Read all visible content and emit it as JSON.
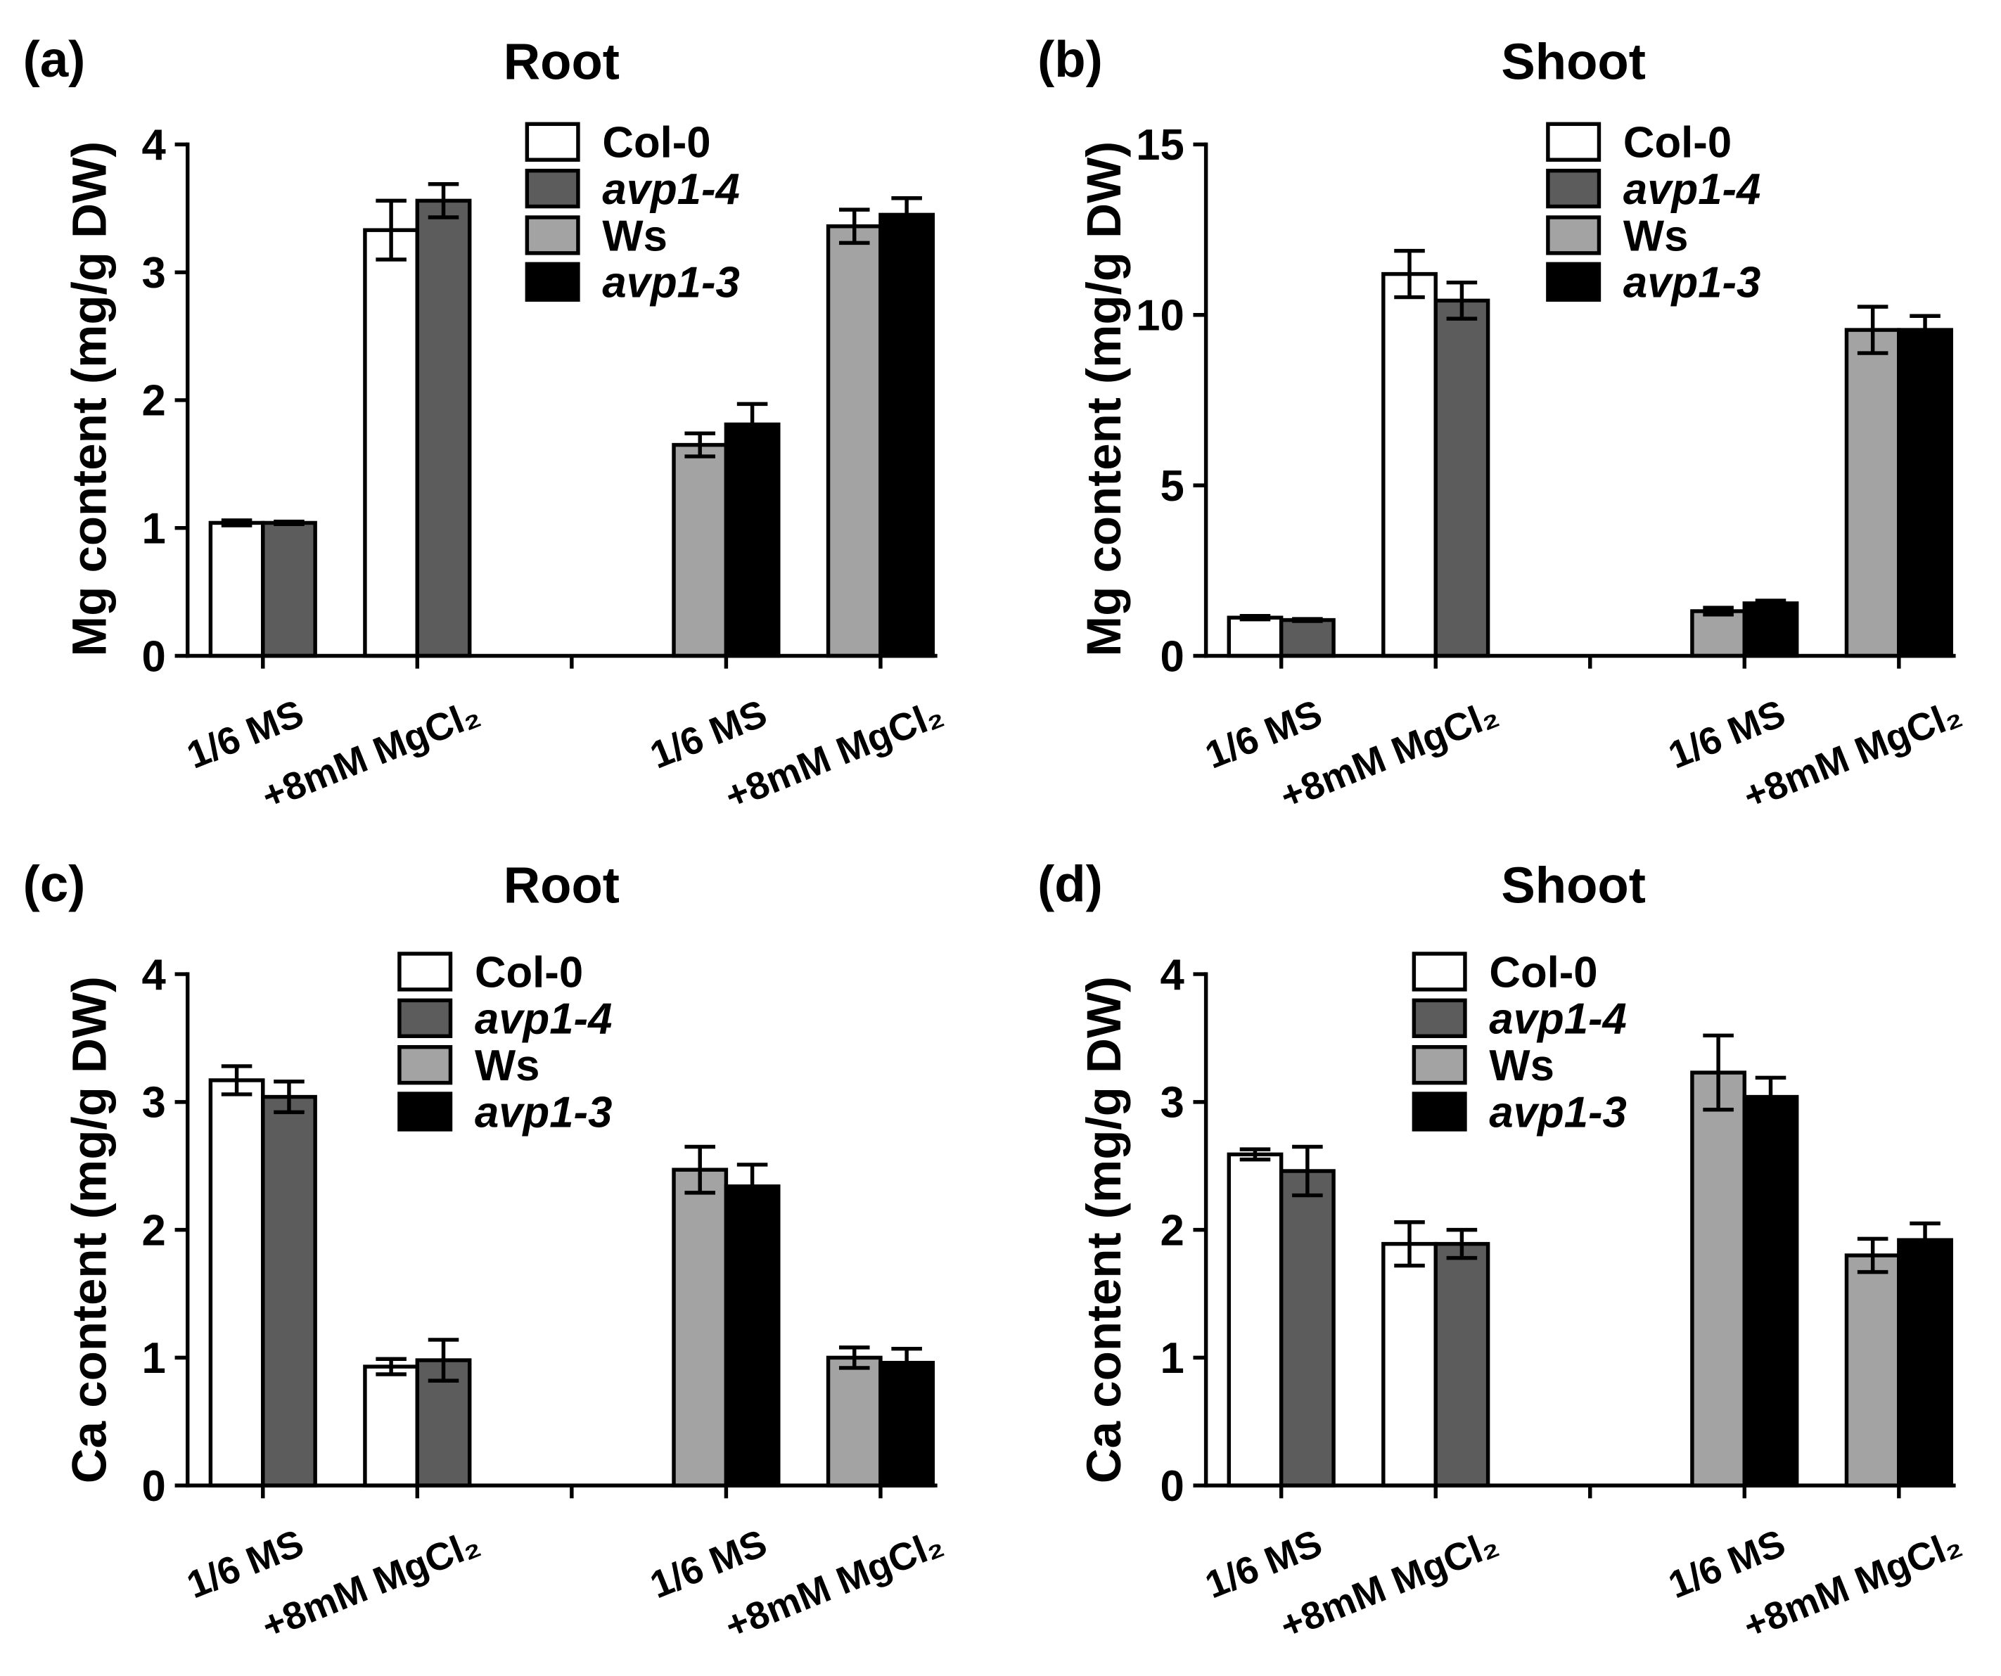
{
  "chart_data": [
    {
      "panel_label": "(a)",
      "type": "bar",
      "title": "Root",
      "xlabel": "",
      "ylabel": "Mg content (mg/g DW)",
      "ylim": [
        0,
        4
      ],
      "yticks": [
        0,
        1,
        2,
        3,
        4
      ],
      "categories": [
        "1/6 MS",
        "+8mM MgCl₂",
        "1/6 MS",
        "+8mM MgCl₂"
      ],
      "series": [
        {
          "name": "Col-0",
          "color": "#ffffff",
          "values": [
            1.04,
            3.33,
            null,
            null
          ],
          "errors": [
            0.02,
            0.23,
            null,
            null
          ]
        },
        {
          "name": "avp1-4",
          "color": "#5c5c5c",
          "values": [
            1.04,
            3.56,
            null,
            null
          ],
          "errors": [
            0.01,
            0.13,
            null,
            null
          ]
        },
        {
          "name": "Ws",
          "color": "#a3a3a3",
          "values": [
            null,
            null,
            1.65,
            3.36
          ],
          "errors": [
            null,
            null,
            0.09,
            0.13
          ]
        },
        {
          "name": "avp1-3",
          "color": "#000000",
          "values": [
            null,
            null,
            1.81,
            3.45
          ],
          "errors": [
            null,
            null,
            0.16,
            0.13
          ]
        }
      ]
    },
    {
      "panel_label": "(b)",
      "type": "bar",
      "title": "Shoot",
      "xlabel": "",
      "ylabel": "Mg content (mg/g DW)",
      "ylim": [
        0,
        15
      ],
      "yticks": [
        0,
        5,
        10,
        15
      ],
      "categories": [
        "1/6 MS",
        "+8mM MgCl₂",
        "1/6 MS",
        "+8mM MgCl₂"
      ],
      "series": [
        {
          "name": "Col-0",
          "color": "#ffffff",
          "values": [
            1.12,
            11.2,
            null,
            null
          ],
          "errors": [
            0.05,
            0.68,
            null,
            null
          ]
        },
        {
          "name": "avp1-4",
          "color": "#5c5c5c",
          "values": [
            1.05,
            10.42,
            null,
            null
          ],
          "errors": [
            0.03,
            0.53,
            null,
            null
          ]
        },
        {
          "name": "Ws",
          "color": "#a3a3a3",
          "values": [
            null,
            null,
            1.31,
            9.56
          ],
          "errors": [
            null,
            null,
            0.1,
            0.68
          ]
        },
        {
          "name": "avp1-3",
          "color": "#000000",
          "values": [
            null,
            null,
            1.54,
            9.56
          ],
          "errors": [
            null,
            null,
            0.08,
            0.41
          ]
        }
      ]
    },
    {
      "panel_label": "(c)",
      "type": "bar",
      "title": "Root",
      "xlabel": "",
      "ylabel": "Ca content (mg/g DW)",
      "ylim": [
        0,
        4
      ],
      "yticks": [
        0,
        1,
        2,
        3,
        4
      ],
      "categories": [
        "1/6 MS",
        "+8mM MgCl₂",
        "1/6 MS",
        "+8mM MgCl₂"
      ],
      "series": [
        {
          "name": "Col-0",
          "color": "#ffffff",
          "values": [
            3.17,
            0.93,
            null,
            null
          ],
          "errors": [
            0.11,
            0.06,
            null,
            null
          ]
        },
        {
          "name": "avp1-4",
          "color": "#5c5c5c",
          "values": [
            3.04,
            0.98,
            null,
            null
          ],
          "errors": [
            0.12,
            0.16,
            null,
            null
          ]
        },
        {
          "name": "Ws",
          "color": "#a3a3a3",
          "values": [
            null,
            null,
            2.47,
            1.0
          ],
          "errors": [
            null,
            null,
            0.18,
            0.08
          ]
        },
        {
          "name": "avp1-3",
          "color": "#000000",
          "values": [
            null,
            null,
            2.34,
            0.96
          ],
          "errors": [
            null,
            null,
            0.17,
            0.11
          ]
        }
      ]
    },
    {
      "panel_label": "(d)",
      "type": "bar",
      "title": "Shoot",
      "xlabel": "",
      "ylabel": "Ca content (mg/g DW)",
      "ylim": [
        0,
        4
      ],
      "yticks": [
        0,
        1,
        2,
        3,
        4
      ],
      "categories": [
        "1/6 MS",
        "+8mM MgCl₂",
        "1/6 MS",
        "+8mM MgCl₂"
      ],
      "series": [
        {
          "name": "Col-0",
          "color": "#ffffff",
          "values": [
            2.59,
            1.89,
            null,
            null
          ],
          "errors": [
            0.04,
            0.17,
            null,
            null
          ]
        },
        {
          "name": "avp1-4",
          "color": "#5c5c5c",
          "values": [
            2.46,
            1.89,
            null,
            null
          ],
          "errors": [
            0.19,
            0.11,
            null,
            null
          ]
        },
        {
          "name": "Ws",
          "color": "#a3a3a3",
          "values": [
            null,
            null,
            3.23,
            1.8
          ],
          "errors": [
            null,
            null,
            0.29,
            0.13
          ]
        },
        {
          "name": "avp1-3",
          "color": "#000000",
          "values": [
            null,
            null,
            3.04,
            1.92
          ],
          "errors": [
            null,
            null,
            0.15,
            0.13
          ]
        }
      ]
    }
  ]
}
